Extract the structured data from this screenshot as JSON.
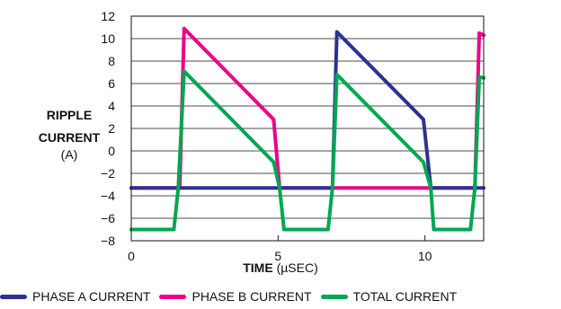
{
  "chart_data": {
    "type": "line",
    "ylabel_line1": "RIPPLE",
    "ylabel_line2": "CURRENT",
    "ylabel_unit": "(A)",
    "xlabel_bold": "TIME",
    "xlabel_unit": "(µSEC)",
    "xlim": [
      0,
      12
    ],
    "ylim": [
      -8,
      12
    ],
    "x_ticks": [
      0,
      5,
      10
    ],
    "y_ticks": [
      -8,
      -6,
      -4,
      -2,
      0,
      2,
      4,
      6,
      8,
      10,
      12
    ],
    "y_tick_labels": [
      "−8",
      "−6",
      "−4",
      "−2",
      "0",
      "2",
      "4",
      "6",
      "8",
      "10",
      "12"
    ],
    "grid": "horizontal",
    "series": [
      {
        "name": "PHASE A CURRENT",
        "color": "#2e3192",
        "points": [
          [
            0,
            -3.3
          ],
          [
            6.85,
            -3.3
          ],
          [
            7.0,
            10.6
          ],
          [
            9.95,
            2.8
          ],
          [
            10.2,
            -3.3
          ],
          [
            12,
            -3.3
          ]
        ]
      },
      {
        "name": "PHASE B CURRENT",
        "color": "#ec008c",
        "points": [
          [
            0,
            -3.3
          ],
          [
            1.65,
            -3.3
          ],
          [
            1.8,
            10.9
          ],
          [
            4.85,
            2.8
          ],
          [
            5.05,
            -3.3
          ],
          [
            11.7,
            -3.3
          ],
          [
            11.85,
            10.5
          ],
          [
            12,
            10.3
          ]
        ]
      },
      {
        "name": "TOTAL CURRENT",
        "color": "#00a651",
        "points": [
          [
            0,
            -7.0
          ],
          [
            1.45,
            -7.0
          ],
          [
            1.6,
            -3.3
          ],
          [
            1.8,
            7.1
          ],
          [
            4.85,
            -1.0
          ],
          [
            5.05,
            -3.3
          ],
          [
            5.2,
            -7.0
          ],
          [
            6.7,
            -7.0
          ],
          [
            6.85,
            -3.3
          ],
          [
            7.0,
            6.8
          ],
          [
            9.95,
            -1.0
          ],
          [
            10.2,
            -3.3
          ],
          [
            10.3,
            -7.0
          ],
          [
            11.55,
            -7.0
          ],
          [
            11.7,
            -3.3
          ],
          [
            11.85,
            6.6
          ],
          [
            12,
            6.5
          ]
        ]
      }
    ]
  }
}
